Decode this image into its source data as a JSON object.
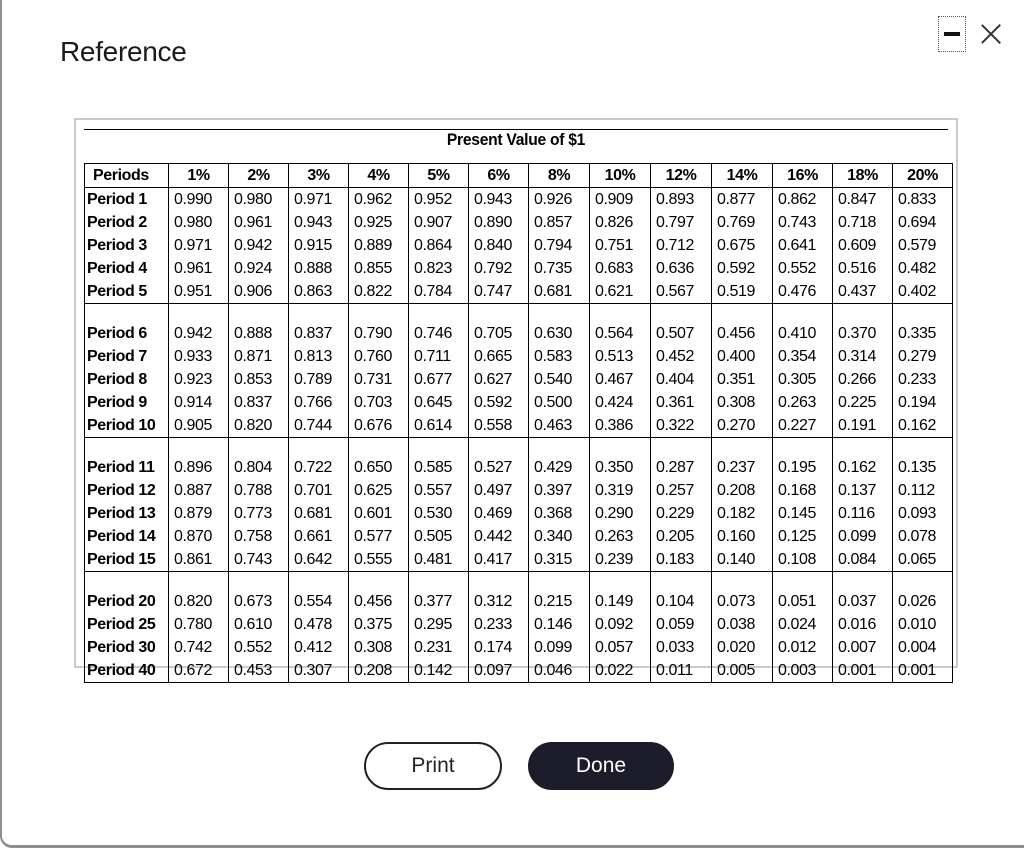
{
  "dialog": {
    "title": "Reference",
    "minimize_icon": "minimize-icon",
    "close_icon": "close-icon"
  },
  "table": {
    "title": "Present Value of $1",
    "headers": [
      "Periods",
      "1%",
      "2%",
      "3%",
      "4%",
      "5%",
      "6%",
      "8%",
      "10%",
      "12%",
      "14%",
      "16%",
      "18%",
      "20%"
    ],
    "groups": [
      [
        {
          "label": "Period 1",
          "values": [
            "0.990",
            "0.980",
            "0.971",
            "0.962",
            "0.952",
            "0.943",
            "0.926",
            "0.909",
            "0.893",
            "0.877",
            "0.862",
            "0.847",
            "0.833"
          ]
        },
        {
          "label": "Period 2",
          "values": [
            "0.980",
            "0.961",
            "0.943",
            "0.925",
            "0.907",
            "0.890",
            "0.857",
            "0.826",
            "0.797",
            "0.769",
            "0.743",
            "0.718",
            "0.694"
          ]
        },
        {
          "label": "Period 3",
          "values": [
            "0.971",
            "0.942",
            "0.915",
            "0.889",
            "0.864",
            "0.840",
            "0.794",
            "0.751",
            "0.712",
            "0.675",
            "0.641",
            "0.609",
            "0.579"
          ]
        },
        {
          "label": "Period 4",
          "values": [
            "0.961",
            "0.924",
            "0.888",
            "0.855",
            "0.823",
            "0.792",
            "0.735",
            "0.683",
            "0.636",
            "0.592",
            "0.552",
            "0.516",
            "0.482"
          ]
        },
        {
          "label": "Period 5",
          "values": [
            "0.951",
            "0.906",
            "0.863",
            "0.822",
            "0.784",
            "0.747",
            "0.681",
            "0.621",
            "0.567",
            "0.519",
            "0.476",
            "0.437",
            "0.402"
          ]
        }
      ],
      [
        {
          "label": "Period 6",
          "values": [
            "0.942",
            "0.888",
            "0.837",
            "0.790",
            "0.746",
            "0.705",
            "0.630",
            "0.564",
            "0.507",
            "0.456",
            "0.410",
            "0.370",
            "0.335"
          ]
        },
        {
          "label": "Period 7",
          "values": [
            "0.933",
            "0.871",
            "0.813",
            "0.760",
            "0.711",
            "0.665",
            "0.583",
            "0.513",
            "0.452",
            "0.400",
            "0.354",
            "0.314",
            "0.279"
          ]
        },
        {
          "label": "Period 8",
          "values": [
            "0.923",
            "0.853",
            "0.789",
            "0.731",
            "0.677",
            "0.627",
            "0.540",
            "0.467",
            "0.404",
            "0.351",
            "0.305",
            "0.266",
            "0.233"
          ]
        },
        {
          "label": "Period 9",
          "values": [
            "0.914",
            "0.837",
            "0.766",
            "0.703",
            "0.645",
            "0.592",
            "0.500",
            "0.424",
            "0.361",
            "0.308",
            "0.263",
            "0.225",
            "0.194"
          ]
        },
        {
          "label": "Period 10",
          "values": [
            "0.905",
            "0.820",
            "0.744",
            "0.676",
            "0.614",
            "0.558",
            "0.463",
            "0.386",
            "0.322",
            "0.270",
            "0.227",
            "0.191",
            "0.162"
          ]
        }
      ],
      [
        {
          "label": "Period 11",
          "values": [
            "0.896",
            "0.804",
            "0.722",
            "0.650",
            "0.585",
            "0.527",
            "0.429",
            "0.350",
            "0.287",
            "0.237",
            "0.195",
            "0.162",
            "0.135"
          ]
        },
        {
          "label": "Period 12",
          "values": [
            "0.887",
            "0.788",
            "0.701",
            "0.625",
            "0.557",
            "0.497",
            "0.397",
            "0.319",
            "0.257",
            "0.208",
            "0.168",
            "0.137",
            "0.112"
          ]
        },
        {
          "label": "Period 13",
          "values": [
            "0.879",
            "0.773",
            "0.681",
            "0.601",
            "0.530",
            "0.469",
            "0.368",
            "0.290",
            "0.229",
            "0.182",
            "0.145",
            "0.116",
            "0.093"
          ]
        },
        {
          "label": "Period 14",
          "values": [
            "0.870",
            "0.758",
            "0.661",
            "0.577",
            "0.505",
            "0.442",
            "0.340",
            "0.263",
            "0.205",
            "0.160",
            "0.125",
            "0.099",
            "0.078"
          ]
        },
        {
          "label": "Period 15",
          "values": [
            "0.861",
            "0.743",
            "0.642",
            "0.555",
            "0.481",
            "0.417",
            "0.315",
            "0.239",
            "0.183",
            "0.140",
            "0.108",
            "0.084",
            "0.065"
          ]
        }
      ],
      [
        {
          "label": "Period 20",
          "values": [
            "0.820",
            "0.673",
            "0.554",
            "0.456",
            "0.377",
            "0.312",
            "0.215",
            "0.149",
            "0.104",
            "0.073",
            "0.051",
            "0.037",
            "0.026"
          ]
        },
        {
          "label": "Period 25",
          "values": [
            "0.780",
            "0.610",
            "0.478",
            "0.375",
            "0.295",
            "0.233",
            "0.146",
            "0.092",
            "0.059",
            "0.038",
            "0.024",
            "0.016",
            "0.010"
          ]
        },
        {
          "label": "Period 30",
          "values": [
            "0.742",
            "0.552",
            "0.412",
            "0.308",
            "0.231",
            "0.174",
            "0.099",
            "0.057",
            "0.033",
            "0.020",
            "0.012",
            "0.007",
            "0.004"
          ]
        },
        {
          "label": "Period 40",
          "values": [
            "0.672",
            "0.453",
            "0.307",
            "0.208",
            "0.142",
            "0.097",
            "0.046",
            "0.022",
            "0.011",
            "0.005",
            "0.003",
            "0.001",
            "0.001"
          ]
        }
      ]
    ]
  },
  "buttons": {
    "print_label": "Print",
    "done_label": "Done"
  }
}
